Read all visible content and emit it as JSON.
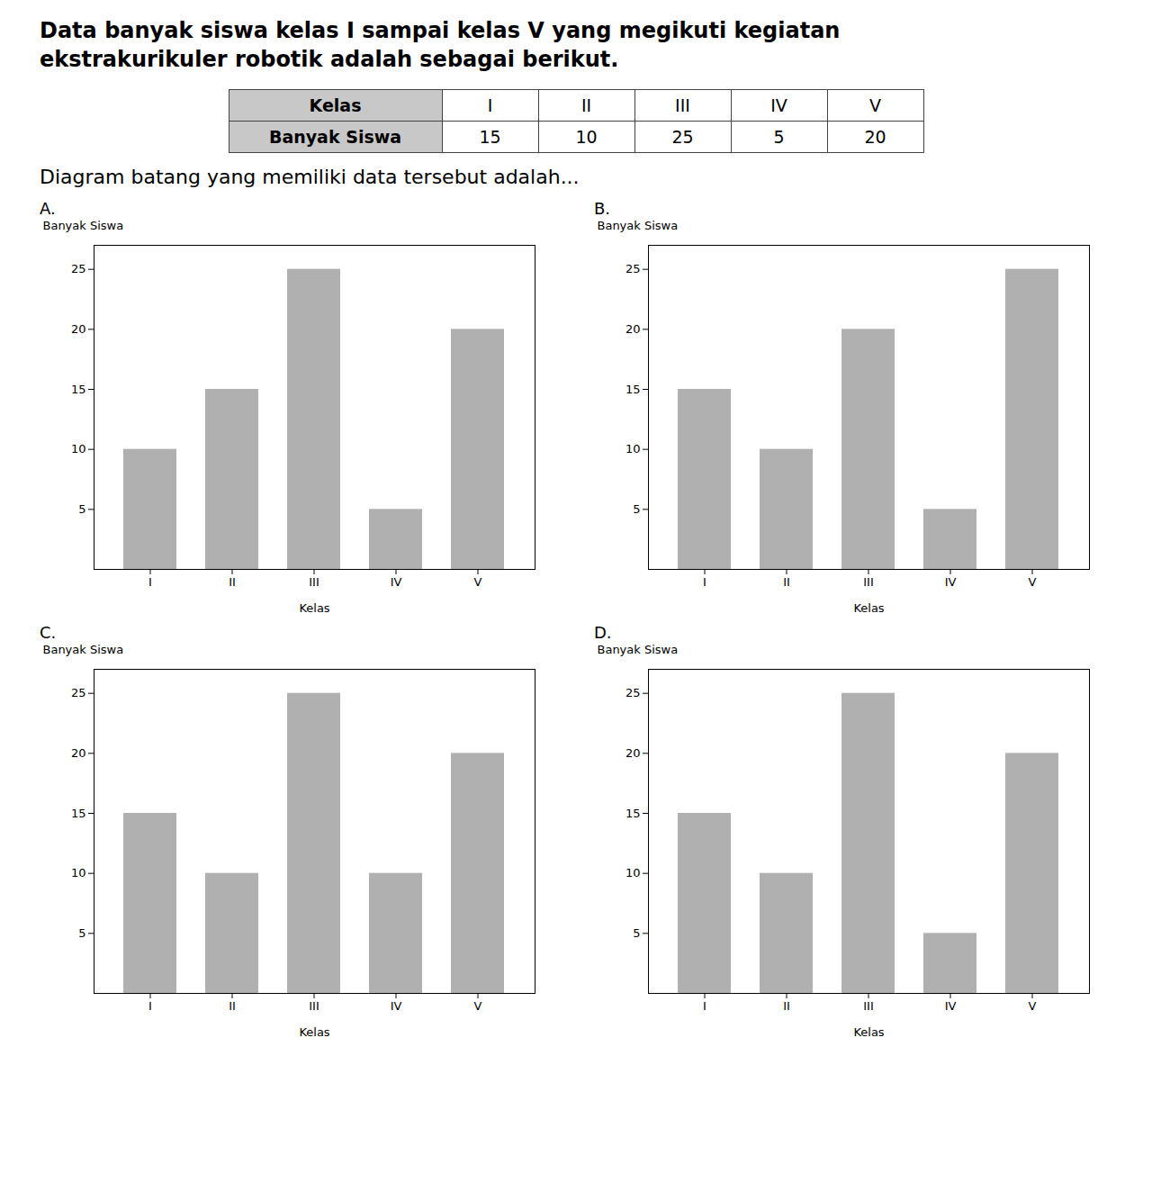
{
  "title": [
    "Data banyak siswa kelas I sampai kelas V yang megikuti kegiatan",
    "ekstrakurikuler robotik adalah sebagai berikut."
  ],
  "table": {
    "header": [
      "Kelas",
      "I",
      "II",
      "III",
      "IV",
      "V"
    ],
    "rows": [
      [
        "Banyak Siswa",
        15,
        10,
        25,
        5,
        20
      ]
    ]
  },
  "question": "Diagram batang yang memiliki data tersebut adalah...",
  "chart_data": [
    {
      "type": "bar",
      "title": "A.",
      "categories": [
        "I",
        "II",
        "III",
        "IV",
        "V"
      ],
      "values": [
        10,
        15,
        25,
        5,
        20
      ],
      "xlabel": "Kelas",
      "ylabel": "Banyak Siswa",
      "ylim": [
        0,
        27
      ],
      "yticks": [
        5,
        10,
        15,
        20,
        25
      ],
      "color": "#b0b0b0"
    },
    {
      "type": "bar",
      "title": "B.",
      "categories": [
        "I",
        "II",
        "III",
        "IV",
        "V"
      ],
      "values": [
        15,
        10,
        20,
        5,
        25
      ],
      "xlabel": "Kelas",
      "ylabel": "Banyak Siswa",
      "ylim": [
        0,
        27
      ],
      "yticks": [
        5,
        10,
        15,
        20,
        25
      ],
      "color": "#b0b0b0"
    },
    {
      "type": "bar",
      "title": "C.",
      "categories": [
        "I",
        "II",
        "III",
        "IV",
        "V"
      ],
      "values": [
        15,
        10,
        25,
        10,
        20
      ],
      "xlabel": "Kelas",
      "ylabel": "Banyak Siswa",
      "ylim": [
        0,
        27
      ],
      "yticks": [
        5,
        10,
        15,
        20,
        25
      ],
      "color": "#b0b0b0"
    },
    {
      "type": "bar",
      "title": "D.",
      "categories": [
        "I",
        "II",
        "III",
        "IV",
        "V"
      ],
      "values": [
        15,
        10,
        25,
        5,
        20
      ],
      "xlabel": "Kelas",
      "ylabel": "Banyak Siswa",
      "ylim": [
        0,
        27
      ],
      "yticks": [
        5,
        10,
        15,
        20,
        25
      ],
      "color": "#b0b0b0"
    }
  ]
}
